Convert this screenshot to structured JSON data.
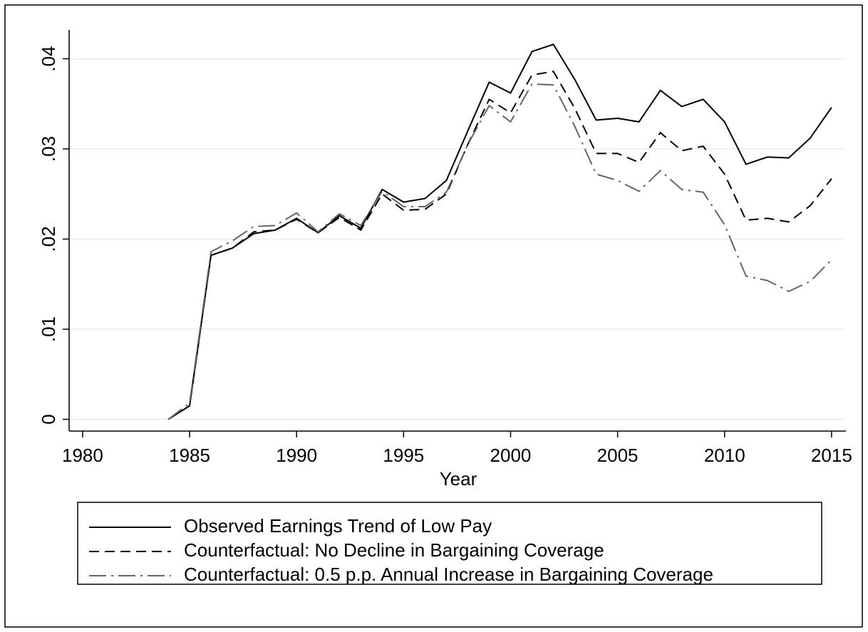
{
  "chart_data": {
    "type": "line",
    "x_label": "Year",
    "x": [
      1984,
      1985,
      1986,
      1987,
      1988,
      1989,
      1990,
      1991,
      1992,
      1993,
      1994,
      1995,
      1996,
      1997,
      1998,
      1999,
      2000,
      2001,
      2002,
      2003,
      2004,
      2005,
      2006,
      2007,
      2008,
      2009,
      2010,
      2011,
      2012,
      2013,
      2014,
      2015
    ],
    "series": [
      {
        "name": "Observed Earnings Trend of Low Pay",
        "color": "#000000",
        "style": "solid",
        "values": [
          0,
          0.0015,
          0.0182,
          0.019,
          0.0206,
          0.021,
          0.0223,
          0.0207,
          0.0226,
          0.0212,
          0.0255,
          0.0241,
          0.0245,
          0.0265,
          0.032,
          0.0374,
          0.0362,
          0.0408,
          0.0416,
          0.0377,
          0.0332,
          0.0334,
          0.033,
          0.0365,
          0.0347,
          0.0355,
          0.033,
          0.0283,
          0.0291,
          0.029,
          0.0312,
          0.0346
        ]
      },
      {
        "name": "Counterfactual: No Decline in Bargaining Coverage",
        "color": "#000000",
        "style": "dash",
        "values": [
          0,
          0.0015,
          0.0182,
          0.019,
          0.0208,
          0.021,
          0.0222,
          0.0207,
          0.0224,
          0.021,
          0.025,
          0.0232,
          0.0233,
          0.025,
          0.0305,
          0.0355,
          0.034,
          0.0382,
          0.0386,
          0.0345,
          0.0295,
          0.0295,
          0.0285,
          0.0318,
          0.0298,
          0.0303,
          0.0272,
          0.0221,
          0.0223,
          0.0219,
          0.0237,
          0.0267
        ]
      },
      {
        "name": "Counterfactual: 0.5 p.p. Annual Increase in Bargaining Coverage",
        "color": "#666666",
        "style": "dashdot",
        "values": [
          0,
          0.0018,
          0.0186,
          0.0198,
          0.0214,
          0.0215,
          0.0229,
          0.0208,
          0.0228,
          0.0215,
          0.0253,
          0.0236,
          0.0236,
          0.0252,
          0.0305,
          0.0348,
          0.033,
          0.0372,
          0.0371,
          0.0325,
          0.0272,
          0.0265,
          0.0253,
          0.0276,
          0.0255,
          0.0252,
          0.0216,
          0.0159,
          0.0154,
          0.0142,
          0.0153,
          0.0177
        ]
      }
    ],
    "xlim": [
      1979.37,
      2015.67
    ],
    "xticks": [
      1980,
      1985,
      1990,
      1995,
      2000,
      2005,
      2010,
      2015
    ],
    "ylim": [
      -0.0013,
      0.0432
    ],
    "yticks": [
      0,
      {
        "value": 0.01,
        "label": ".01"
      },
      {
        "value": 0.02,
        "label": ".02"
      },
      {
        "value": 0.03,
        "label": ".03"
      },
      {
        "value": 0.04,
        "label": ".04"
      }
    ],
    "grid": true,
    "legend": "bottom"
  }
}
